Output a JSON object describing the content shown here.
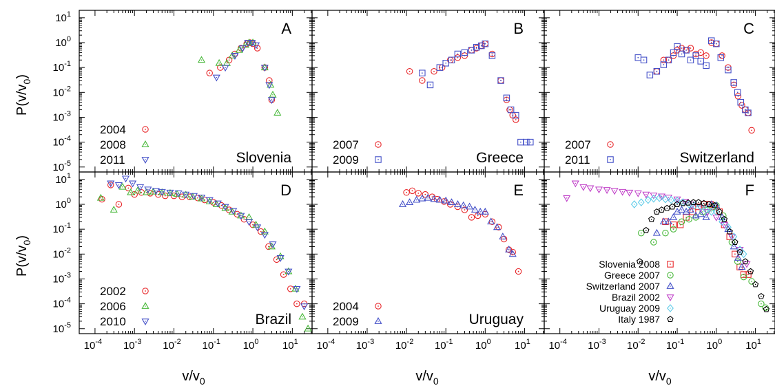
{
  "colors": {
    "red": "#e8282b",
    "green": "#48b83a",
    "blue": "#4450c8",
    "magenta": "#c040c8",
    "cyan": "#5ecbe8",
    "black": "#000000"
  },
  "axes": {
    "xlabel": "v/v",
    "xlabel_sub": "0",
    "ylabel": "P(v/v",
    "ylabel_sub": "0",
    "ylabel_close": ")",
    "x_range_exp": [
      -4.4,
      1.5
    ],
    "y_range_exp": [
      -5.2,
      1.3
    ],
    "x_tick_exponents": [
      -4,
      -3,
      -2,
      -1,
      0,
      1
    ],
    "y_tick_exponents": [
      -5,
      -4,
      -3,
      -2,
      -1,
      0,
      1
    ],
    "log_scale": true
  },
  "chart_data": [
    {
      "type": "scatter",
      "panel": "A",
      "country": "Slovenia",
      "legend_position": "bottom-left",
      "series": [
        {
          "name": "2004",
          "marker": "circle",
          "color": "red",
          "x": [
            0.08,
            0.15,
            0.25,
            0.35,
            0.5,
            0.7,
            0.85,
            1.0,
            1.3,
            2.0,
            2.6,
            3.0
          ],
          "y": [
            0.06,
            0.1,
            0.2,
            0.35,
            0.6,
            0.9,
            1.0,
            0.9,
            0.6,
            0.1,
            0.03,
            0.005
          ]
        },
        {
          "name": "2008",
          "marker": "triangle-up",
          "color": "green",
          "x": [
            0.05,
            0.14,
            0.22,
            0.3,
            0.45,
            0.65,
            0.8,
            1.0,
            2.0,
            2.8,
            3.2,
            4.2
          ],
          "y": [
            0.2,
            0.15,
            0.15,
            0.3,
            0.5,
            0.8,
            1.0,
            1.0,
            0.1,
            0.02,
            0.008,
            0.0015
          ]
        },
        {
          "name": "2011",
          "marker": "triangle-down",
          "color": "blue",
          "x": [
            0.12,
            0.2,
            0.35,
            0.55,
            0.75,
            0.95,
            1.2,
            2.0,
            2.6,
            3.0
          ],
          "y": [
            0.04,
            0.1,
            0.3,
            0.6,
            1.0,
            1.0,
            0.8,
            0.1,
            0.02,
            0.005
          ]
        }
      ]
    },
    {
      "type": "scatter",
      "panel": "B",
      "country": "Greece",
      "legend_position": "bottom-left",
      "series": [
        {
          "name": "2007",
          "marker": "circle",
          "color": "red",
          "x": [
            0.012,
            0.025,
            0.05,
            0.08,
            0.13,
            0.2,
            0.3,
            0.45,
            0.6,
            0.8,
            1.0,
            1.5,
            2.5,
            3.5,
            4.2,
            5.0,
            6.0
          ],
          "y": [
            0.07,
            0.03,
            0.07,
            0.1,
            0.2,
            0.25,
            0.3,
            0.5,
            0.6,
            0.75,
            0.9,
            0.35,
            0.03,
            0.005,
            0.002,
            0.0012,
            0.0008
          ]
        },
        {
          "name": "2009",
          "marker": "square",
          "color": "blue",
          "x": [
            0.025,
            0.04,
            0.07,
            0.1,
            0.14,
            0.2,
            0.3,
            0.45,
            0.6,
            0.8,
            1.0,
            1.5,
            2.5,
            3.5,
            4.5,
            6.0,
            8.0,
            11.0,
            14.0
          ],
          "y": [
            0.06,
            0.02,
            0.1,
            0.15,
            0.2,
            0.35,
            0.4,
            0.5,
            0.65,
            0.75,
            0.9,
            0.3,
            0.03,
            0.006,
            0.002,
            0.0012,
            0.0001,
            0.0001,
            0.0001
          ]
        }
      ]
    },
    {
      "type": "scatter",
      "panel": "C",
      "country": "Switzerland",
      "legend_position": "bottom-left",
      "series": [
        {
          "name": "2007",
          "marker": "circle",
          "color": "red",
          "x": [
            0.03,
            0.045,
            0.06,
            0.08,
            0.1,
            0.13,
            0.17,
            0.22,
            0.3,
            0.4,
            0.55,
            0.75,
            1.0,
            1.4,
            2.0,
            2.8,
            3.6,
            4.5,
            5.5,
            6.5,
            8.0
          ],
          "y": [
            0.07,
            0.2,
            0.2,
            0.3,
            0.5,
            0.6,
            0.5,
            0.6,
            0.35,
            0.4,
            0.3,
            1.0,
            0.9,
            0.3,
            0.1,
            0.02,
            0.007,
            0.003,
            0.002,
            0.0015,
            0.0003
          ]
        },
        {
          "name": "2011",
          "marker": "square",
          "color": "blue",
          "x": [
            0.01,
            0.014,
            0.02,
            0.03,
            0.045,
            0.06,
            0.08,
            0.1,
            0.13,
            0.17,
            0.22,
            0.3,
            0.4,
            0.55,
            0.75,
            1.0,
            1.3,
            2.0,
            2.8,
            3.5,
            4.2,
            5.5,
            6.5
          ],
          "y": [
            0.25,
            0.2,
            0.05,
            0.07,
            0.13,
            0.2,
            0.4,
            0.7,
            0.35,
            0.5,
            0.2,
            0.3,
            0.18,
            0.12,
            1.2,
            0.9,
            0.25,
            0.08,
            0.025,
            0.01,
            0.004,
            0.002,
            0.0015
          ]
        }
      ]
    },
    {
      "type": "scatter",
      "panel": "D",
      "country": "Brazil",
      "legend_position": "bottom-left",
      "series": [
        {
          "name": "2002",
          "marker": "circle",
          "color": "red",
          "x": [
            0.00015,
            0.00025,
            0.0004,
            0.0007,
            0.001,
            0.0015,
            0.0025,
            0.004,
            0.006,
            0.01,
            0.016,
            0.025,
            0.04,
            0.06,
            0.1,
            0.16,
            0.25,
            0.4,
            0.6,
            1.0,
            1.6,
            2.5,
            4.0,
            6.0,
            9.0,
            13.0,
            20.0
          ],
          "y": [
            1.6,
            6.0,
            1.0,
            4.5,
            2.5,
            3.0,
            2.8,
            2.5,
            2.2,
            2.2,
            2.0,
            2.0,
            1.8,
            1.5,
            1.2,
            0.9,
            0.6,
            0.4,
            0.25,
            0.15,
            0.08,
            0.02,
            0.006,
            0.0015,
            0.0004,
            0.0001,
            0.0001
          ]
        },
        {
          "name": "2006",
          "marker": "triangle-up",
          "color": "green",
          "x": [
            0.00014,
            0.0003,
            0.0005,
            0.0008,
            0.0012,
            0.002,
            0.003,
            0.005,
            0.008,
            0.012,
            0.02,
            0.03,
            0.05,
            0.08,
            0.12,
            0.2,
            0.3,
            0.5,
            0.8,
            1.2,
            2.0,
            3.0,
            5.0,
            8.0,
            12.0,
            18.0,
            25.0
          ],
          "y": [
            1.8,
            0.6,
            5.0,
            3.0,
            3.5,
            3.0,
            3.2,
            3.0,
            2.8,
            2.6,
            2.4,
            2.0,
            1.7,
            1.3,
            1.0,
            0.7,
            0.5,
            0.35,
            0.3,
            0.15,
            0.08,
            0.02,
            0.008,
            0.002,
            0.0004,
            3e-05,
            1e-05
          ]
        },
        {
          "name": "2010",
          "marker": "triangle-down",
          "color": "blue",
          "x": [
            0.00025,
            0.0004,
            0.0006,
            0.0009,
            0.0014,
            0.0022,
            0.0035,
            0.005,
            0.008,
            0.013,
            0.02,
            0.032,
            0.05,
            0.08,
            0.13,
            0.2,
            0.32,
            0.5,
            0.8,
            1.3,
            2.0,
            3.2,
            5.0,
            8.0,
            13.0,
            20.0
          ],
          "y": [
            7.0,
            6.0,
            11.0,
            7.0,
            5.0,
            4.0,
            3.5,
            3.2,
            3.0,
            2.8,
            2.5,
            2.2,
            1.9,
            1.5,
            1.1,
            0.8,
            0.55,
            0.35,
            0.2,
            0.12,
            0.06,
            0.025,
            0.007,
            0.002,
            0.0004,
            8e-05
          ]
        }
      ]
    },
    {
      "type": "scatter",
      "panel": "E",
      "country": "Uruguay",
      "legend_position": "bottom-left",
      "series": [
        {
          "name": "2004",
          "marker": "circle",
          "color": "red",
          "x": [
            0.01,
            0.014,
            0.02,
            0.03,
            0.045,
            0.06,
            0.09,
            0.13,
            0.2,
            0.3,
            0.45,
            0.65,
            1.0,
            1.5,
            2.2,
            3.0,
            4.0,
            5.0,
            7.0
          ],
          "y": [
            3.0,
            3.5,
            2.8,
            2.5,
            2.0,
            1.6,
            1.3,
            1.0,
            0.8,
            0.6,
            0.3,
            0.35,
            0.4,
            0.2,
            0.12,
            0.04,
            0.015,
            0.012,
            0.002
          ]
        },
        {
          "name": "2009",
          "marker": "triangle-up",
          "color": "blue",
          "x": [
            0.008,
            0.012,
            0.018,
            0.025,
            0.035,
            0.05,
            0.07,
            0.1,
            0.14,
            0.2,
            0.28,
            0.4,
            0.55,
            0.75,
            1.0,
            1.4,
            2.0,
            2.8,
            4.0,
            5.0
          ],
          "y": [
            1.0,
            1.2,
            1.5,
            1.7,
            1.8,
            1.6,
            1.5,
            1.4,
            1.2,
            1.0,
            0.9,
            0.8,
            0.6,
            0.5,
            0.5,
            0.2,
            0.12,
            0.05,
            0.015,
            0.01
          ]
        }
      ]
    },
    {
      "type": "scatter",
      "panel": "F",
      "country": "",
      "legend_position": "bottom-right",
      "series": [
        {
          "name": "Slovenia 2008",
          "marker": "square",
          "color": "red",
          "x": [
            0.05,
            0.08,
            0.12,
            0.17,
            0.25,
            0.35,
            0.5,
            0.7,
            0.9,
            1.2,
            1.6,
            2.2,
            3.0,
            4.0,
            5.0,
            6.5
          ],
          "y": [
            0.2,
            0.15,
            0.15,
            0.3,
            0.5,
            0.8,
            1.0,
            1.0,
            0.8,
            0.5,
            0.15,
            0.05,
            0.01,
            0.003,
            0.0015,
            0.0015
          ]
        },
        {
          "name": "Greece 2007",
          "marker": "circle",
          "color": "green",
          "x": [
            0.012,
            0.025,
            0.05,
            0.08,
            0.13,
            0.2,
            0.3,
            0.45,
            0.6,
            0.8,
            1.0,
            1.5,
            2.5,
            3.5,
            5.0,
            8.0,
            14.0,
            18.0
          ],
          "y": [
            0.07,
            0.03,
            0.07,
            0.1,
            0.2,
            0.25,
            0.3,
            0.5,
            0.6,
            0.75,
            0.9,
            0.35,
            0.03,
            0.005,
            0.0012,
            0.0008,
            0.0001,
            7e-05
          ]
        },
        {
          "name": "Switzerland 2007",
          "marker": "triangle-up",
          "color": "blue",
          "x": [
            0.03,
            0.045,
            0.06,
            0.08,
            0.1,
            0.13,
            0.17,
            0.22,
            0.3,
            0.4,
            0.55,
            0.75,
            1.0,
            1.4,
            2.0,
            2.8,
            3.6,
            4.5
          ],
          "y": [
            0.07,
            0.2,
            0.2,
            0.3,
            0.5,
            0.6,
            0.5,
            0.6,
            0.35,
            0.4,
            0.3,
            1.0,
            0.9,
            0.3,
            0.1,
            0.02,
            0.007,
            0.003
          ]
        },
        {
          "name": "Brazil 2002",
          "marker": "triangle-down",
          "color": "magenta",
          "x": [
            0.00015,
            0.00025,
            0.0004,
            0.0006,
            0.001,
            0.0016,
            0.0025,
            0.004,
            0.006,
            0.01,
            0.016,
            0.025,
            0.04,
            0.06,
            0.1,
            0.16,
            0.25,
            0.4,
            0.6,
            1.0,
            1.6,
            2.5,
            4.0,
            6.0
          ],
          "y": [
            1.8,
            7.0,
            5.0,
            4.5,
            4.0,
            3.8,
            3.5,
            3.2,
            3.0,
            2.8,
            2.5,
            2.3,
            2.1,
            1.9,
            1.6,
            1.3,
            1.0,
            0.7,
            0.5,
            0.3,
            0.15,
            0.05,
            0.015,
            0.004
          ]
        },
        {
          "name": "Uruguay 2009",
          "marker": "diamond",
          "color": "cyan",
          "x": [
            0.008,
            0.012,
            0.018,
            0.025,
            0.035,
            0.05,
            0.07,
            0.1,
            0.14,
            0.2,
            0.28,
            0.4,
            0.55,
            0.75,
            1.0,
            1.4,
            2.0,
            2.8,
            4.0,
            5.0
          ],
          "y": [
            1.0,
            1.2,
            1.5,
            1.7,
            1.8,
            1.6,
            1.5,
            1.4,
            1.2,
            1.0,
            0.9,
            0.8,
            0.6,
            0.5,
            0.5,
            0.2,
            0.12,
            0.05,
            0.015,
            0.01
          ]
        },
        {
          "name": "Italy 1987",
          "marker": "pentagon",
          "color": "black",
          "x": [
            0.011,
            0.016,
            0.022,
            0.03,
            0.04,
            0.055,
            0.075,
            0.1,
            0.14,
            0.19,
            0.26,
            0.35,
            0.48,
            0.65,
            0.9,
            1.2,
            1.6,
            2.2,
            3.0,
            4.0,
            5.5,
            7.5,
            10.0,
            14.0,
            19.0
          ],
          "y": [
            0.005,
            0.09,
            0.25,
            0.5,
            0.6,
            0.7,
            0.8,
            1.0,
            1.1,
            1.15,
            1.2,
            1.2,
            1.1,
            1.0,
            0.9,
            0.5,
            0.25,
            0.08,
            0.03,
            0.012,
            0.005,
            0.002,
            0.0006,
            0.0002,
            6e-05
          ]
        }
      ]
    }
  ]
}
